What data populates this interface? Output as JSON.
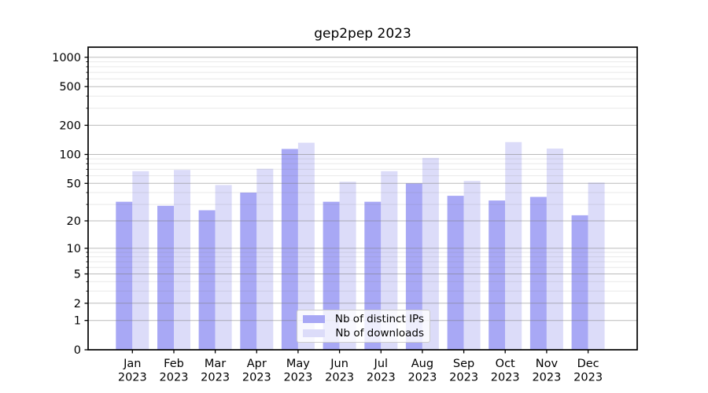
{
  "title": "gep2pep 2023",
  "chart_data": {
    "type": "bar",
    "title": "gep2pep 2023",
    "categories": [
      "Jan 2023",
      "Feb 2023",
      "Mar 2023",
      "Apr 2023",
      "May 2023",
      "Jun 2023",
      "Jul 2023",
      "Aug 2023",
      "Sep 2023",
      "Oct 2023",
      "Nov 2023",
      "Dec 2023"
    ],
    "series": [
      {
        "name": "Nb of distinct IPs",
        "color": "#a8a8f5",
        "values": [
          32,
          29,
          26,
          40,
          114,
          32,
          32,
          50,
          37,
          33,
          36,
          23
        ]
      },
      {
        "name": "Nb of downloads",
        "color": "#dcdcf9",
        "values": [
          67,
          69,
          48,
          71,
          132,
          52,
          67,
          92,
          53,
          134,
          115,
          51
        ]
      }
    ],
    "xlabel": "",
    "ylabel": "",
    "y_scale": "log(1+x)",
    "y_ticks": [
      0,
      1,
      2,
      5,
      10,
      20,
      50,
      100,
      200,
      500,
      1000
    ],
    "y_minor_ticks": [
      3,
      4,
      6,
      7,
      8,
      9,
      30,
      40,
      60,
      70,
      80,
      90,
      300,
      400,
      600,
      700,
      800,
      900
    ],
    "ylim": [
      0,
      1270
    ],
    "grid": "major+minor horizontal, drawn over bars",
    "legend_position": "lower center",
    "colors": {
      "axis": "#000000",
      "grid_major": "#bdbdbd",
      "grid_minor": "#ebebeb",
      "background": "#ffffff",
      "text": "#000000"
    }
  }
}
